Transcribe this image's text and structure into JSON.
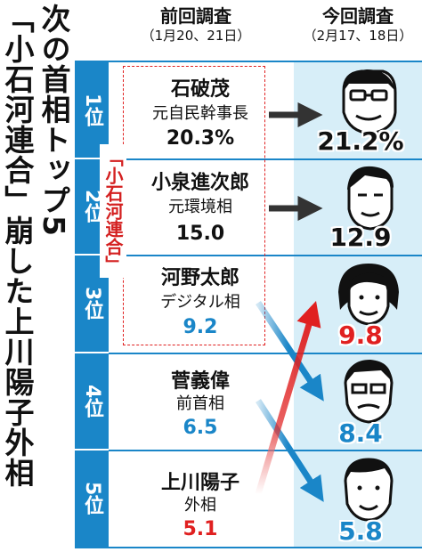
{
  "title_lines": [
    "次の首相トップ5",
    "「小石河連合」崩した上川陽子外相"
  ],
  "headers": {
    "previous": {
      "label": "前回調査",
      "dates": "（1月20、21日）"
    },
    "current": {
      "label": "今回調査",
      "dates": "（2月17、18日）"
    }
  },
  "group_label": "「小石河連合」",
  "ranks": [
    "1位",
    "2位",
    "3位",
    "4位",
    "5位"
  ],
  "previous": [
    {
      "name": "石破茂",
      "title": "元自民幹事長",
      "value": "20.3%",
      "color": "#111111"
    },
    {
      "name": "小泉進次郎",
      "title": "元環境相",
      "value": "15.0",
      "color": "#111111"
    },
    {
      "name": "河野太郎",
      "title": "デジタル相",
      "value": "9.2",
      "color": "#1a86c8"
    },
    {
      "name": "菅義偉",
      "title": "前首相",
      "value": "6.5",
      "color": "#1a86c8"
    },
    {
      "name": "上川陽子",
      "title": "外相",
      "value": "5.1",
      "color": "#e02020"
    }
  ],
  "current": [
    {
      "value": "21.2%",
      "color": "#111111",
      "face": "ishiba-portrait"
    },
    {
      "value": "12.9",
      "color": "#111111",
      "face": "koizumi-portrait"
    },
    {
      "value": "9.8",
      "color": "#e02020",
      "face": "kamikawa-portrait"
    },
    {
      "value": "8.4",
      "color": "#1a86c8",
      "face": "kono-portrait"
    },
    {
      "value": "5.8",
      "color": "#1a86c8",
      "face": "suga-portrait"
    }
  ],
  "colors": {
    "blue": "#1a86c8",
    "red": "#e02020",
    "panel": "#d7eef8",
    "dark": "#333333"
  }
}
